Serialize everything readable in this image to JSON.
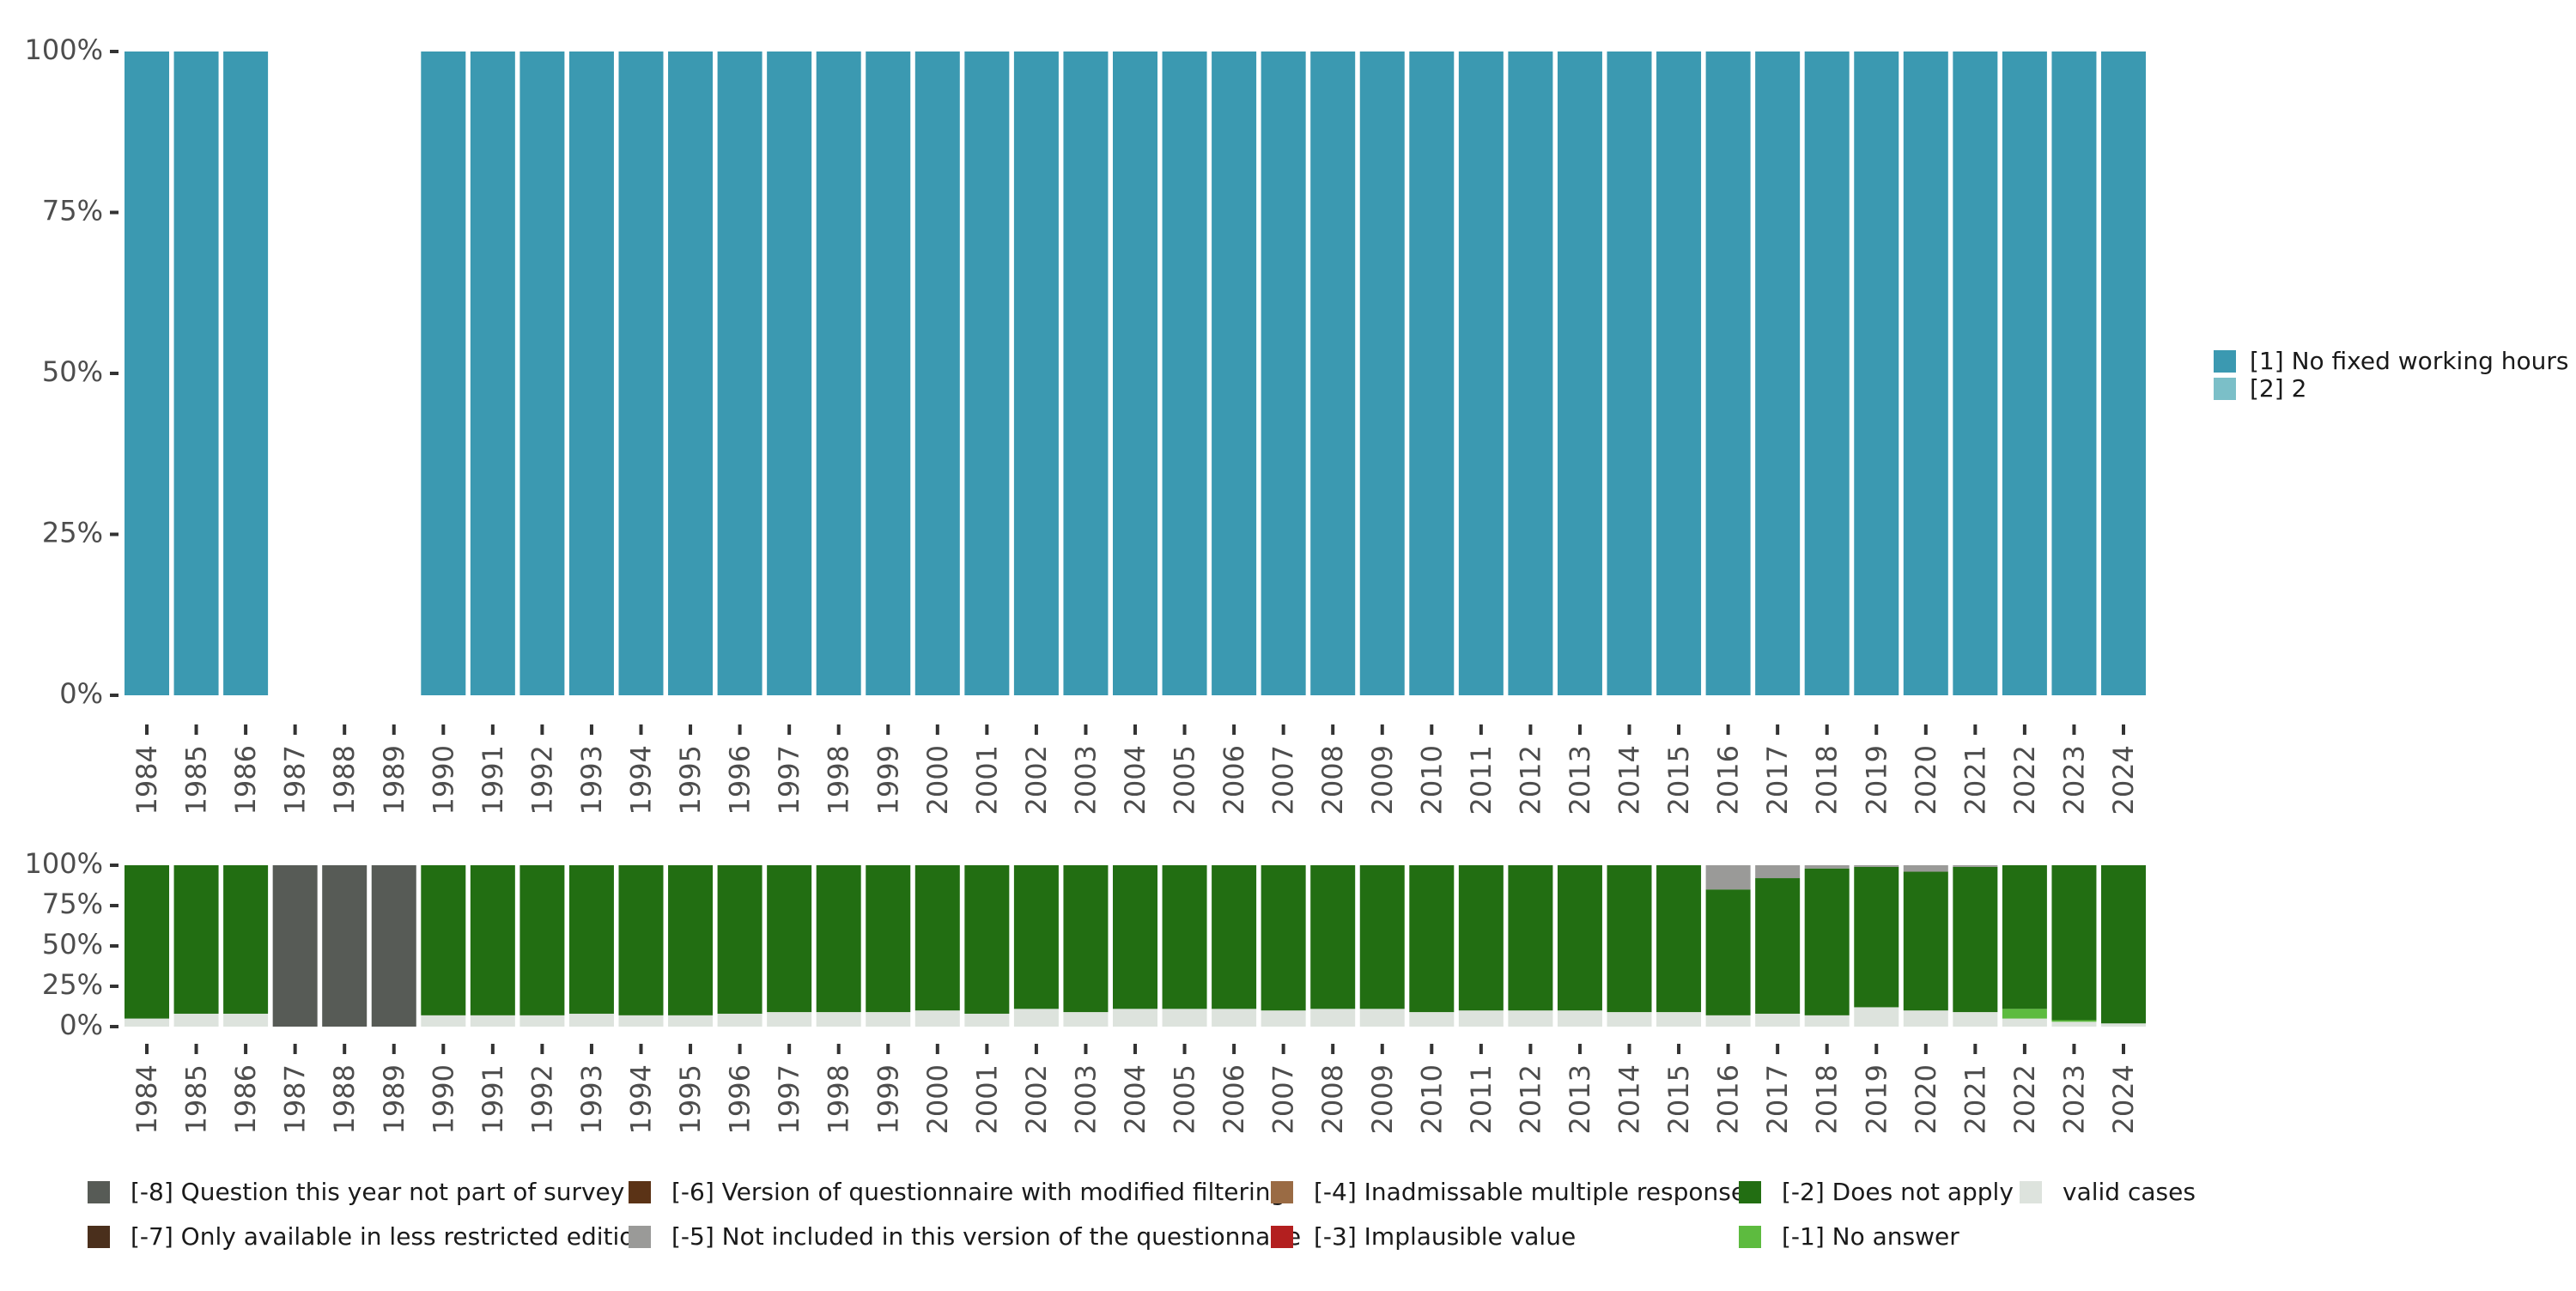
{
  "chart_data": [
    {
      "type": "bar",
      "stacked": true,
      "categories": [
        "1984",
        "1985",
        "1986",
        "1987",
        "1988",
        "1989",
        "1990",
        "1991",
        "1992",
        "1993",
        "1994",
        "1995",
        "1996",
        "1997",
        "1998",
        "1999",
        "2000",
        "2001",
        "2002",
        "2003",
        "2004",
        "2005",
        "2006",
        "2007",
        "2008",
        "2009",
        "2010",
        "2011",
        "2012",
        "2013",
        "2014",
        "2015",
        "2016",
        "2017",
        "2018",
        "2019",
        "2020",
        "2021",
        "2022",
        "2023",
        "2024"
      ],
      "ylim": [
        0,
        100
      ],
      "yticks": [
        "0%",
        "25%",
        "50%",
        "75%",
        "100%"
      ],
      "legend_position": "right",
      "series": [
        {
          "name": "[1] No fixed working hours",
          "color": "#3b99b1",
          "values": [
            100,
            100,
            100,
            0,
            0,
            0,
            100,
            100,
            100,
            100,
            100,
            100,
            100,
            100,
            100,
            100,
            100,
            100,
            100,
            100,
            100,
            100,
            100,
            100,
            100,
            100,
            100,
            100,
            100,
            100,
            100,
            100,
            100,
            100,
            100,
            100,
            100,
            100,
            100,
            100,
            100
          ]
        },
        {
          "name": "[2] 2",
          "color": "#7bbfc8",
          "values": [
            0,
            0,
            0,
            0,
            0,
            0,
            0,
            0,
            0,
            0,
            0,
            0,
            0,
            0,
            0,
            0,
            0,
            0,
            0,
            0,
            0,
            0,
            0,
            0,
            0,
            0,
            0,
            0,
            0,
            0,
            0,
            0,
            0,
            0,
            0,
            0,
            0,
            0,
            0,
            0,
            0
          ]
        }
      ]
    },
    {
      "type": "bar",
      "stacked": true,
      "categories": [
        "1984",
        "1985",
        "1986",
        "1987",
        "1988",
        "1989",
        "1990",
        "1991",
        "1992",
        "1993",
        "1994",
        "1995",
        "1996",
        "1997",
        "1998",
        "1999",
        "2000",
        "2001",
        "2002",
        "2003",
        "2004",
        "2005",
        "2006",
        "2007",
        "2008",
        "2009",
        "2010",
        "2011",
        "2012",
        "2013",
        "2014",
        "2015",
        "2016",
        "2017",
        "2018",
        "2019",
        "2020",
        "2021",
        "2022",
        "2023",
        "2024"
      ],
      "ylim": [
        0,
        100
      ],
      "yticks": [
        "0%",
        "25%",
        "50%",
        "75%",
        "100%"
      ],
      "legend_position": "bottom",
      "series": [
        {
          "name": "valid cases",
          "color": "#dde3dd",
          "values": [
            5,
            8,
            8,
            0,
            0,
            0,
            7,
            7,
            7,
            8,
            7,
            7,
            8,
            9,
            9,
            9,
            10,
            8,
            11,
            9,
            11,
            11,
            11,
            10,
            11,
            11,
            9,
            10,
            10,
            10,
            9,
            9,
            7,
            8,
            7,
            12,
            10,
            9,
            5,
            3,
            2
          ]
        },
        {
          "name": "[-1] No answer",
          "color": "#5dbb3f",
          "values": [
            0,
            0,
            0,
            0,
            0,
            0,
            0,
            0,
            0,
            0,
            0,
            0,
            0,
            0,
            0,
            0,
            0,
            0,
            0,
            0,
            0,
            0,
            0,
            0,
            0,
            0,
            0,
            0,
            0,
            0,
            0,
            0,
            0,
            0,
            0,
            0,
            0,
            0,
            6,
            1,
            0
          ]
        },
        {
          "name": "[-2] Does not apply",
          "color": "#226e12",
          "values": [
            95,
            92,
            92,
            0,
            0,
            0,
            93,
            93,
            93,
            92,
            93,
            93,
            92,
            91,
            91,
            91,
            90,
            92,
            89,
            91,
            89,
            89,
            89,
            90,
            89,
            89,
            91,
            90,
            90,
            90,
            91,
            91,
            78,
            84,
            91,
            87,
            86,
            90,
            89,
            96,
            98
          ]
        },
        {
          "name": "[-3] Implausible value",
          "color": "#b31f1f",
          "values": [
            0,
            0,
            0,
            0,
            0,
            0,
            0,
            0,
            0,
            0,
            0,
            0,
            0,
            0,
            0,
            0,
            0,
            0,
            0,
            0,
            0,
            0,
            0,
            0,
            0,
            0,
            0,
            0,
            0,
            0,
            0,
            0,
            0,
            0,
            0,
            0,
            0,
            0,
            0,
            0,
            0
          ]
        },
        {
          "name": "[-4] Inadmissable multiple response",
          "color": "#9a6b44",
          "values": [
            0,
            0,
            0,
            0,
            0,
            0,
            0,
            0,
            0,
            0,
            0,
            0,
            0,
            0,
            0,
            0,
            0,
            0,
            0,
            0,
            0,
            0,
            0,
            0,
            0,
            0,
            0,
            0,
            0,
            0,
            0,
            0,
            0,
            0,
            0,
            0,
            0,
            0,
            0,
            0,
            0
          ]
        },
        {
          "name": "[-5] Not included in this version of the questionnaire",
          "color": "#9a9a98",
          "values": [
            0,
            0,
            0,
            0,
            0,
            0,
            0,
            0,
            0,
            0,
            0,
            0,
            0,
            0,
            0,
            0,
            0,
            0,
            0,
            0,
            0,
            0,
            0,
            0,
            0,
            0,
            0,
            0,
            0,
            0,
            0,
            0,
            15,
            8,
            2,
            1,
            4,
            1,
            0,
            0,
            0
          ]
        },
        {
          "name": "[-6] Version of questionnaire with modified filtering",
          "color": "#5b3316",
          "values": [
            0,
            0,
            0,
            0,
            0,
            0,
            0,
            0,
            0,
            0,
            0,
            0,
            0,
            0,
            0,
            0,
            0,
            0,
            0,
            0,
            0,
            0,
            0,
            0,
            0,
            0,
            0,
            0,
            0,
            0,
            0,
            0,
            0,
            0,
            0,
            0,
            0,
            0,
            0,
            0,
            0
          ]
        },
        {
          "name": "[-7] Only available in less restricted edition",
          "color": "#4a2f1c",
          "values": [
            0,
            0,
            0,
            0,
            0,
            0,
            0,
            0,
            0,
            0,
            0,
            0,
            0,
            0,
            0,
            0,
            0,
            0,
            0,
            0,
            0,
            0,
            0,
            0,
            0,
            0,
            0,
            0,
            0,
            0,
            0,
            0,
            0,
            0,
            0,
            0,
            0,
            0,
            0,
            0,
            0
          ]
        },
        {
          "name": "[-8] Question this year not part of survey",
          "color": "#575b56",
          "values": [
            0,
            0,
            0,
            100,
            100,
            100,
            0,
            0,
            0,
            0,
            0,
            0,
            0,
            0,
            0,
            0,
            0,
            0,
            0,
            0,
            0,
            0,
            0,
            0,
            0,
            0,
            0,
            0,
            0,
            0,
            0,
            0,
            0,
            0,
            0,
            0,
            0,
            0,
            0,
            0,
            0
          ]
        }
      ],
      "legend_order": [
        "[-8] Question this year not part of survey",
        "[-7] Only available in less restricted edition",
        "[-6] Version of questionnaire with modified filtering",
        "[-5] Not included in this version of the questionnaire",
        "[-4] Inadmissable multiple response",
        "[-3] Implausible value",
        "[-2] Does not apply",
        "[-1] No answer",
        "valid cases"
      ]
    }
  ]
}
